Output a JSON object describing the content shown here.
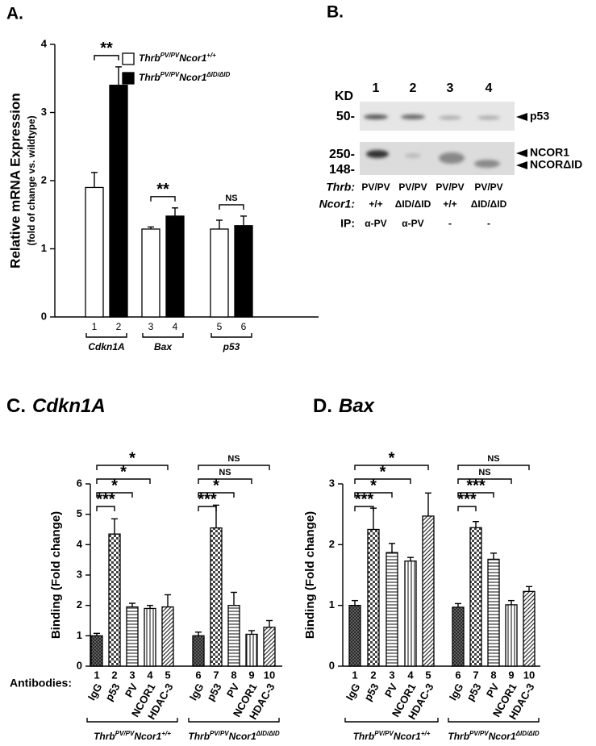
{
  "chart_data": [
    {
      "type": "bar",
      "title": "A.",
      "y_label": "Relative mRNA Expression",
      "y_sublabel": "(fold of change vs. wildtype)",
      "categories": [
        "Cdkn1A",
        "Bax",
        "p53"
      ],
      "series": [
        {
          "name": [
            "Thrb",
            "PV/PV",
            "Ncor1",
            "+/+"
          ],
          "color": "#ffffff",
          "values": [
            1.9,
            1.29,
            1.29
          ],
          "errors": [
            0.22,
            0.03,
            0.13
          ],
          "bar_labels": [
            "1",
            "3",
            "5"
          ]
        },
        {
          "name": [
            "Thrb",
            "PV/PV",
            "Ncor1",
            "ΔID/ΔID"
          ],
          "color": "#000000",
          "values": [
            3.4,
            1.48,
            1.34
          ],
          "errors": [
            0.27,
            0.12,
            0.14
          ],
          "bar_labels": [
            "2",
            "4",
            "6"
          ]
        }
      ],
      "ylim": [
        0,
        4
      ],
      "yticks": [
        0,
        1,
        2,
        3,
        4
      ],
      "annotations": [
        {
          "text": "**",
          "category": 0
        },
        {
          "text": "**",
          "category": 1
        },
        {
          "text": "NS",
          "category": 2
        }
      ]
    },
    {
      "type": "bar",
      "title": "C.",
      "gene": "Cdkn1A",
      "y_label": "Binding (Fold change)",
      "x_label": "Antibodies:",
      "categories": [
        "IgG",
        "p53",
        "PV",
        "NCOR1",
        "HDAC-3",
        "IgG",
        "p53",
        "PV",
        "NCOR1",
        "HDAC-3"
      ],
      "bar_labels": [
        "1",
        "2",
        "3",
        "4",
        "5",
        "6",
        "7",
        "8",
        "9",
        "10"
      ],
      "values": [
        1.0,
        4.35,
        1.95,
        1.9,
        1.95,
        1.0,
        4.55,
        2.0,
        1.05,
        1.28
      ],
      "errors": [
        0.08,
        0.5,
        0.12,
        0.1,
        0.4,
        0.12,
        0.75,
        0.43,
        0.12,
        0.22
      ],
      "ylim": [
        0,
        6
      ],
      "yticks": [
        0,
        1,
        2,
        3,
        4,
        5,
        6
      ],
      "groups": [
        {
          "name": [
            "Thrb",
            "PV/PV",
            "Ncor1",
            "+/+"
          ]
        },
        {
          "name": [
            "Thrb",
            "PV/PV",
            "Ncor1",
            "ΔID/ΔID"
          ]
        }
      ],
      "annotations": [
        {
          "text": "***",
          "bars": [
            0,
            1
          ]
        },
        {
          "text": "*",
          "bars": [
            0,
            2
          ]
        },
        {
          "text": "*",
          "bars": [
            0,
            3
          ]
        },
        {
          "text": "*",
          "bars": [
            0,
            4
          ]
        },
        {
          "text": "***",
          "bars": [
            5,
            6
          ]
        },
        {
          "text": "*",
          "bars": [
            5,
            7
          ]
        },
        {
          "text": "NS",
          "bars": [
            5,
            8
          ]
        },
        {
          "text": "NS",
          "bars": [
            5,
            9
          ]
        }
      ]
    },
    {
      "type": "bar",
      "title": "D.",
      "gene": "Bax",
      "y_label": "Binding (Fold change)",
      "categories": [
        "IgG",
        "p53",
        "PV",
        "NCOR1",
        "HDAC-3",
        "IgG",
        "p53",
        "PV",
        "NCOR1",
        "HDAC-3"
      ],
      "bar_labels": [
        "1",
        "2",
        "3",
        "4",
        "5",
        "6",
        "7",
        "8",
        "9",
        "10"
      ],
      "values": [
        1.0,
        2.25,
        1.87,
        1.73,
        2.47,
        0.97,
        2.28,
        1.76,
        1.01,
        1.23
      ],
      "errors": [
        0.08,
        0.35,
        0.15,
        0.06,
        0.38,
        0.06,
        0.1,
        0.1,
        0.07,
        0.08
      ],
      "ylim": [
        0,
        3
      ],
      "yticks": [
        0,
        1,
        2,
        3
      ],
      "groups": [
        {
          "name": [
            "Thrb",
            "PV/PV",
            "Ncor1",
            "+/+"
          ]
        },
        {
          "name": [
            "Thrb",
            "PV/PV",
            "Ncor1",
            "ΔID/ΔID"
          ]
        }
      ],
      "annotations": [
        {
          "text": "***",
          "bars": [
            0,
            1
          ]
        },
        {
          "text": "*",
          "bars": [
            0,
            2
          ]
        },
        {
          "text": "*",
          "bars": [
            0,
            3
          ]
        },
        {
          "text": "*",
          "bars": [
            0,
            4
          ]
        },
        {
          "text": "***",
          "bars": [
            5,
            6
          ]
        },
        {
          "text": "***",
          "bars": [
            5,
            7
          ]
        },
        {
          "text": "NS",
          "bars": [
            5,
            8
          ]
        },
        {
          "text": "NS",
          "bars": [
            5,
            9
          ]
        }
      ]
    }
  ],
  "blot": {
    "title": "B.",
    "kd": "KD",
    "lanes": [
      "1",
      "2",
      "3",
      "4"
    ],
    "markers": [
      "50-",
      "250-",
      "148-"
    ],
    "bands": [
      "p53",
      "NCOR1",
      "NCORΔID"
    ],
    "rows": [
      {
        "label": "Thrb:",
        "values": [
          "PV/PV",
          "PV/PV",
          "PV/PV",
          "PV/PV"
        ]
      },
      {
        "label": "Ncor1:",
        "values": [
          "+/+",
          "ΔID/ΔID",
          "+/+",
          "ΔID/ΔID"
        ]
      },
      {
        "label": "IP:",
        "values": [
          "α-PV",
          "α-PV",
          "-",
          "-"
        ]
      }
    ]
  }
}
